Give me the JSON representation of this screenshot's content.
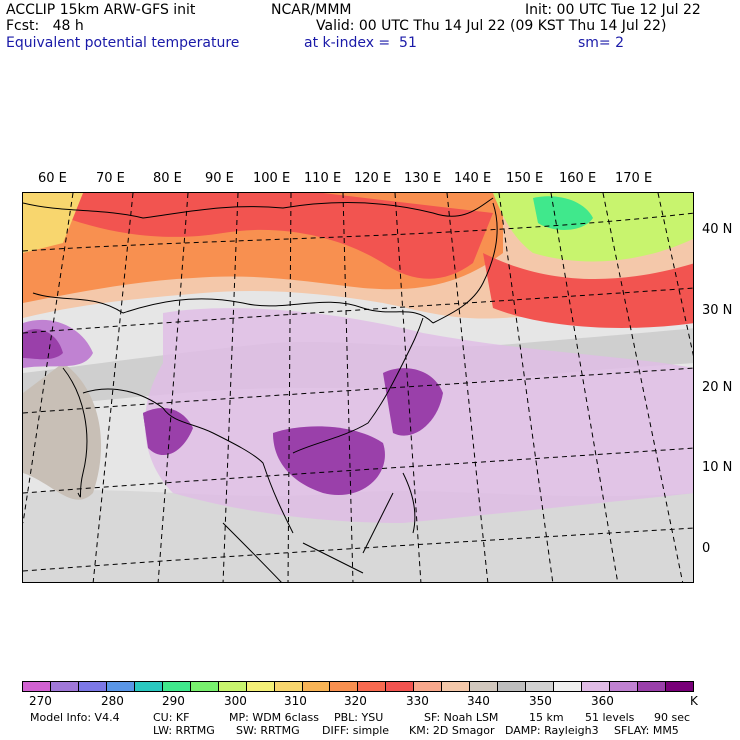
{
  "header": {
    "left_line1": "ACCLIP 15km ARW-GFS init",
    "left_line2": "Fcst:   48 h",
    "subtitle": "Equivalent potential temperature",
    "center_line1": "NCAR/MMM",
    "kindex": "at k-index =  51",
    "init": "Init: 00 UTC Tue 12 Jul 22",
    "valid": "Valid: 00 UTC Thu 14 Jul 22 (09 KST Thu 14 Jul 22)",
    "sm": "sm= 2"
  },
  "map": {
    "lon_labels": [
      "60 E",
      "70 E",
      "80 E",
      "90 E",
      "100 E",
      "110 E",
      "120 E",
      "130 E",
      "140 E",
      "150 E",
      "160 E",
      "170 E"
    ],
    "lat_labels": [
      "40 N",
      "30 N",
      "20 N",
      "10 N",
      "0"
    ]
  },
  "colorbar": {
    "colors": [
      "#d262d2",
      "#a078d8",
      "#7c78e6",
      "#5a96e6",
      "#2ac8c0",
      "#40e88c",
      "#78f06e",
      "#c8f46e",
      "#f4f078",
      "#f8d66e",
      "#f8b456",
      "#f89050",
      "#f86a50",
      "#f25450",
      "#f8a88c",
      "#f4c8aa",
      "#d2c8be",
      "#bebebe",
      "#d2d2d2",
      "#f0f0f0",
      "#e0bce6",
      "#c082d2",
      "#9a40aa",
      "#780078"
    ],
    "labels": [
      "270",
      "280",
      "290",
      "300",
      "310",
      "320",
      "330",
      "340",
      "350",
      "360"
    ],
    "unit": "K"
  },
  "footer": {
    "model_info": "Model Info: V4.4",
    "cu": "CU: KF",
    "mp": "MP: WDM 6class",
    "pbl": "PBL: YSU",
    "sf": "SF: Noah LSM",
    "res": "15 km",
    "levels": "51 levels",
    "dt": "90 sec",
    "lw": "LW: RRTMG",
    "sw": "SW: RRTMG",
    "diff": "DIFF: simple",
    "km": "KM: 2D Smagor",
    "damp": "DAMP: Rayleigh3",
    "sflay": "SFLAY: MM5"
  }
}
